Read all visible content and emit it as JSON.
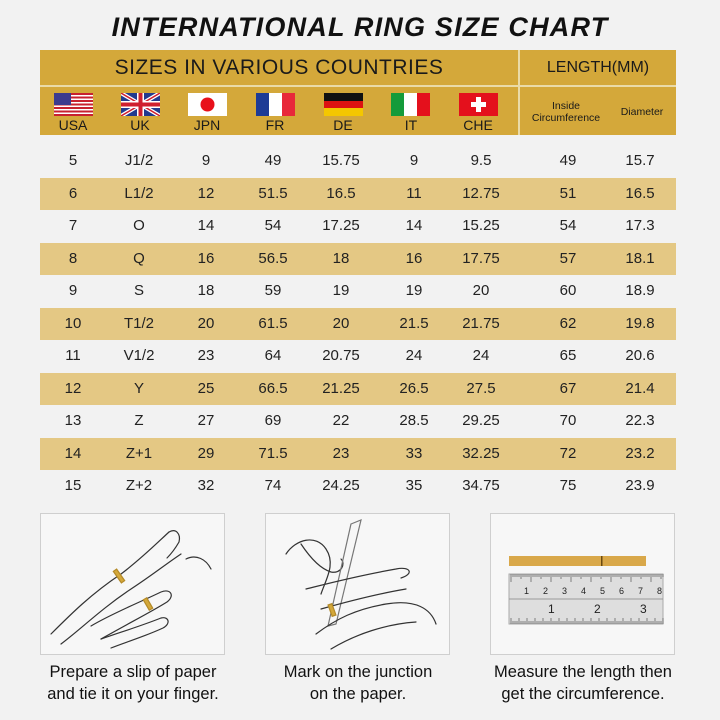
{
  "title": "INTERNATIONAL RING SIZE CHART",
  "header": {
    "main": "SIZES IN VARIOUS COUNTRIES",
    "length": "LENGTH(MM)",
    "countries": [
      {
        "code": "USA",
        "flag": "us-flag"
      },
      {
        "code": "UK",
        "flag": "uk-flag"
      },
      {
        "code": "JPN",
        "flag": "japan-flag"
      },
      {
        "code": "FR",
        "flag": "france-flag"
      },
      {
        "code": "DE",
        "flag": "germany-flag"
      },
      {
        "code": "IT",
        "flag": "italy-flag"
      },
      {
        "code": "CHE",
        "flag": "switzerland-flag"
      }
    ],
    "inside_line1": "Inside",
    "inside_line2": "Circumference",
    "diameter": "Diameter"
  },
  "colors": {
    "header": "#d4a83a",
    "stripe": "#e4c884",
    "background": "#f2f2f2"
  },
  "rows": [
    [
      "5",
      "J1/2",
      "9",
      "49",
      "15.75",
      "9",
      "9.5",
      "49",
      "15.7"
    ],
    [
      "6",
      "L1/2",
      "12",
      "51.5",
      "16.5",
      "11",
      "12.75",
      "51",
      "16.5"
    ],
    [
      "7",
      "O",
      "14",
      "54",
      "17.25",
      "14",
      "15.25",
      "54",
      "17.3"
    ],
    [
      "8",
      "Q",
      "16",
      "56.5",
      "18",
      "16",
      "17.75",
      "57",
      "18.1"
    ],
    [
      "9",
      "S",
      "18",
      "59",
      "19",
      "19",
      "20",
      "60",
      "18.9"
    ],
    [
      "10",
      "T1/2",
      "20",
      "61.5",
      "20",
      "21.5",
      "21.75",
      "62",
      "19.8"
    ],
    [
      "11",
      "V1/2",
      "23",
      "64",
      "20.75",
      "24",
      "24",
      "65",
      "20.6"
    ],
    [
      "12",
      "Y",
      "25",
      "66.5",
      "21.25",
      "26.5",
      "27.5",
      "67",
      "21.4"
    ],
    [
      "13",
      "Z",
      "27",
      "69",
      "22",
      "28.5",
      "29.25",
      "70",
      "22.3"
    ],
    [
      "14",
      "Z+1",
      "29",
      "71.5",
      "23",
      "33",
      "32.25",
      "72",
      "23.2"
    ],
    [
      "15",
      "Z+2",
      "32",
      "74",
      "24.25",
      "35",
      "34.75",
      "75",
      "23.9"
    ]
  ],
  "steps": [
    {
      "line1": "Prepare a slip of paper",
      "line2": "and tie it on your finger."
    },
    {
      "line1": "Mark on the junction",
      "line2": "on the paper."
    },
    {
      "line1": "Measure the length then",
      "line2": "get the circumference."
    }
  ],
  "ruler": {
    "cm": [
      "1",
      "2",
      "3",
      "4",
      "5",
      "6",
      "7",
      "8"
    ],
    "inch": [
      "1",
      "2",
      "3"
    ]
  }
}
